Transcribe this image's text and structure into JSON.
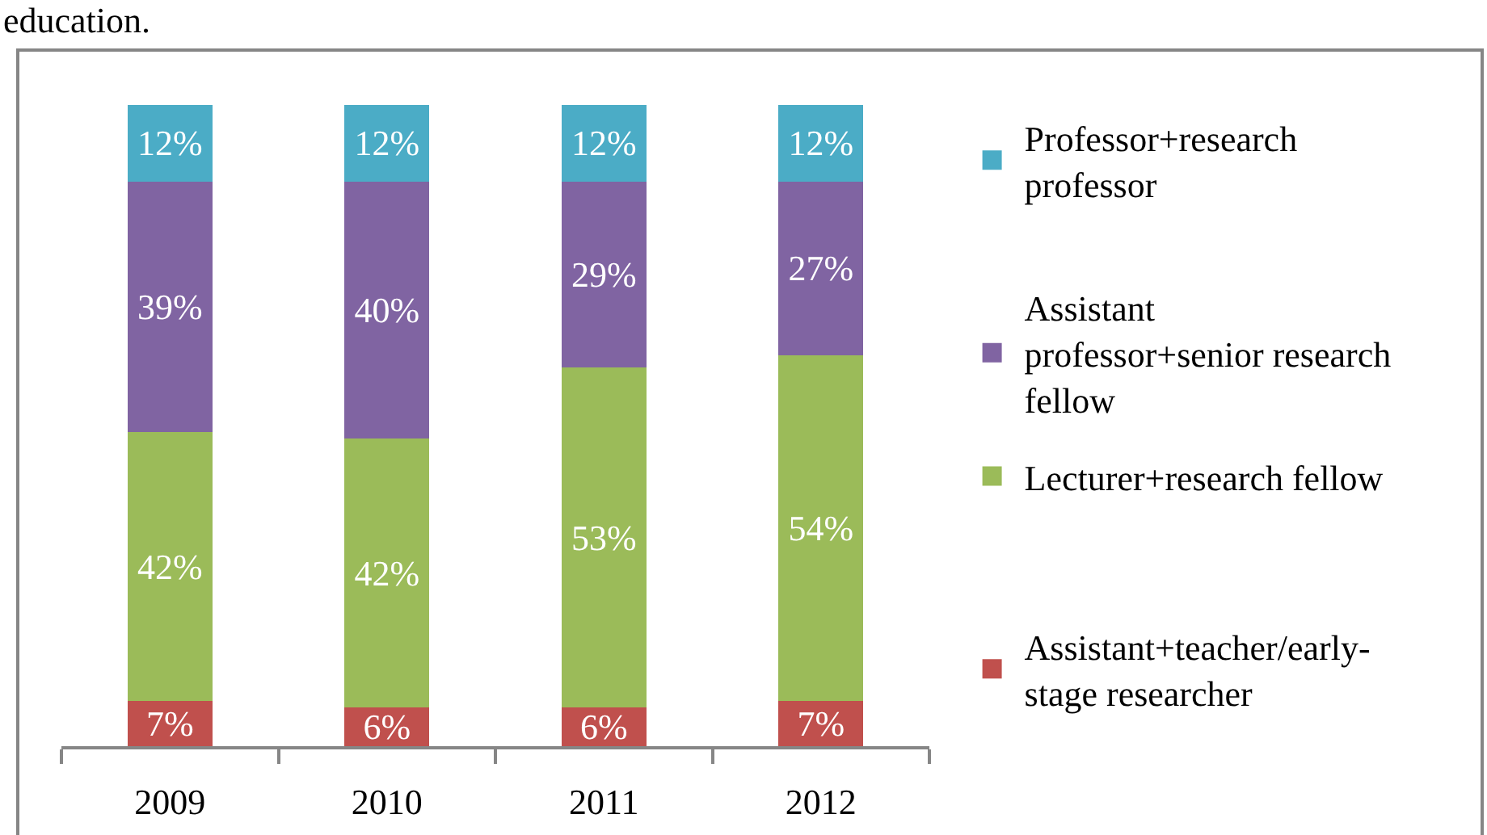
{
  "chart_data": {
    "type": "bar",
    "stacked": true,
    "categories": [
      "2009",
      "2010",
      "2011",
      "2012"
    ],
    "series": [
      {
        "name": "Assistant+teacher/early-stage researcher",
        "color": "#c0504d",
        "values": [
          7,
          6,
          6,
          7
        ],
        "value_labels": [
          "7%",
          "6%",
          "6%",
          "7%"
        ]
      },
      {
        "name": "Lecturer+research fellow",
        "color": "#9bbb59",
        "values": [
          42,
          42,
          53,
          54
        ],
        "value_labels": [
          "42%",
          "42%",
          "53%",
          "54%"
        ]
      },
      {
        "name": "Assistant professor+senior research fellow",
        "color": "#8064a2",
        "values": [
          39,
          40,
          29,
          27
        ],
        "value_labels": [
          "39%",
          "40%",
          "29%",
          "27%"
        ]
      },
      {
        "name": "Professor+research professor",
        "color": "#4bacc6",
        "values": [
          12,
          12,
          12,
          12
        ],
        "value_labels": [
          "12%",
          "12%",
          "12%",
          "12%"
        ]
      }
    ],
    "legend": "right",
    "tick_labels": "x",
    "annotations": [
      "education."
    ]
  }
}
